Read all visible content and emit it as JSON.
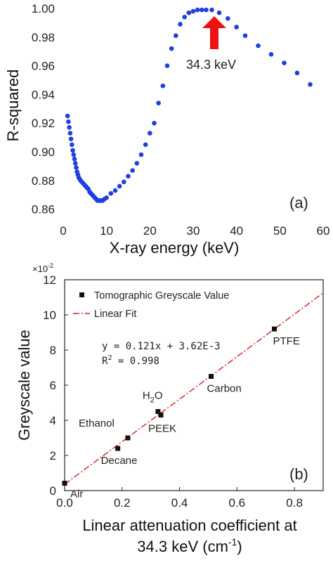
{
  "chart_data": [
    {
      "type": "scatter",
      "panel_label": "(a)",
      "xlabel": "X-ray energy (keV)",
      "ylabel": "R-squared",
      "xlim": [
        0,
        60
      ],
      "ylim": [
        0.85,
        1.0
      ],
      "xticks": [
        "0",
        "10",
        "20",
        "30",
        "40",
        "50",
        "60"
      ],
      "yticks": [
        "0.86",
        "0.88",
        "0.90",
        "0.92",
        "0.94",
        "0.96",
        "0.98",
        "1.00"
      ],
      "annotation": "34.3 keV",
      "arrow_x": 34.3,
      "marker_color": "#1f3fe0",
      "arrow_color": "#ee1111",
      "grid": false,
      "points": [
        [
          1.0,
          0.925
        ],
        [
          1.2,
          0.921
        ],
        [
          1.4,
          0.917
        ],
        [
          1.6,
          0.913
        ],
        [
          1.8,
          0.909
        ],
        [
          2.0,
          0.905
        ],
        [
          2.2,
          0.901
        ],
        [
          2.4,
          0.898
        ],
        [
          2.6,
          0.895
        ],
        [
          2.8,
          0.892
        ],
        [
          3.0,
          0.889
        ],
        [
          3.2,
          0.886
        ],
        [
          3.4,
          0.884
        ],
        [
          3.6,
          0.882
        ],
        [
          3.8,
          0.881
        ],
        [
          4.0,
          0.88
        ],
        [
          4.3,
          0.879
        ],
        [
          4.6,
          0.878
        ],
        [
          4.9,
          0.877
        ],
        [
          5.2,
          0.876
        ],
        [
          5.5,
          0.875
        ],
        [
          5.8,
          0.874
        ],
        [
          6.1,
          0.872
        ],
        [
          6.4,
          0.871
        ],
        [
          6.7,
          0.87
        ],
        [
          7.0,
          0.869
        ],
        [
          7.3,
          0.868
        ],
        [
          7.6,
          0.867
        ],
        [
          7.9,
          0.866
        ],
        [
          8.2,
          0.866
        ],
        [
          8.5,
          0.866
        ],
        [
          8.8,
          0.866
        ],
        [
          9.1,
          0.866
        ],
        [
          9.5,
          0.867
        ],
        [
          10.0,
          0.868
        ],
        [
          11.0,
          0.871
        ],
        [
          12.0,
          0.873
        ],
        [
          13.0,
          0.876
        ],
        [
          14.0,
          0.879
        ],
        [
          15.0,
          0.883
        ],
        [
          16.0,
          0.887
        ],
        [
          17.0,
          0.892
        ],
        [
          18.0,
          0.898
        ],
        [
          19.0,
          0.905
        ],
        [
          20.0,
          0.913
        ],
        [
          21.0,
          0.92
        ],
        [
          22.0,
          0.934
        ],
        [
          23.0,
          0.946
        ],
        [
          24.0,
          0.96
        ],
        [
          25.0,
          0.972
        ],
        [
          26.0,
          0.981
        ],
        [
          27.0,
          0.989
        ],
        [
          28.0,
          0.994
        ],
        [
          29.0,
          0.997
        ],
        [
          30.0,
          0.998
        ],
        [
          31.0,
          0.999
        ],
        [
          32.0,
          0.999
        ],
        [
          33.0,
          0.999
        ],
        [
          34.3,
          0.999
        ],
        [
          36.0,
          0.997
        ],
        [
          38.0,
          0.993
        ],
        [
          40.0,
          0.987
        ],
        [
          42.0,
          0.981
        ],
        [
          45.0,
          0.974
        ],
        [
          48.0,
          0.968
        ],
        [
          51.0,
          0.962
        ],
        [
          54.0,
          0.955
        ],
        [
          57.0,
          0.947
        ]
      ]
    },
    {
      "type": "scatter",
      "panel_label": "(b)",
      "xlabel_line1": "Linear attenuation coefficient at",
      "xlabel_line2": "34.3 keV (cm-1)",
      "ylabel": "Greyscale value",
      "y_multiplier": "×10-2",
      "xlim": [
        0,
        0.9
      ],
      "ylim": [
        0,
        12
      ],
      "xticks": [
        "0.0",
        "0.2",
        "0.4",
        "0.6",
        "0.8"
      ],
      "yticks": [
        "0",
        "2",
        "4",
        "6",
        "8",
        "10",
        "12"
      ],
      "legend": [
        "Tomographic Greyscale Value",
        "Linear Fit"
      ],
      "legend_position": "top-left",
      "equation_line1": "y = 0.121x + 3.62E-3",
      "equation_line2": "R2 = 0.998",
      "marker_color": "#111111",
      "fit_color": "#dd1a1a",
      "fit": {
        "slope": 0.121,
        "intercept": 0.00362
      },
      "grid": false,
      "points": [
        {
          "label": "Air",
          "x": 0.0,
          "y": 0.42
        },
        {
          "label": "Decane",
          "x": 0.185,
          "y": 2.4
        },
        {
          "label": "Ethanol",
          "x": 0.22,
          "y": 3.0
        },
        {
          "label": "H2O",
          "x": 0.325,
          "y": 4.5
        },
        {
          "label": "PEEK",
          "x": 0.335,
          "y": 4.3
        },
        {
          "label": "Carbon",
          "x": 0.51,
          "y": 6.5
        },
        {
          "label": "PTFE",
          "x": 0.73,
          "y": 9.2
        }
      ]
    }
  ]
}
